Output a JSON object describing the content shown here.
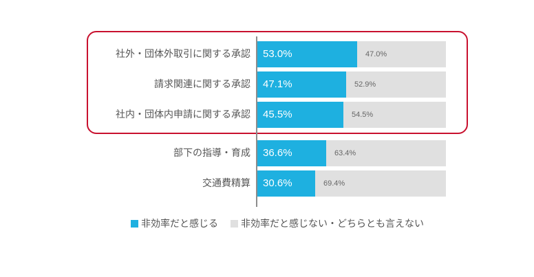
{
  "chart_data": {
    "type": "bar",
    "orientation": "horizontal",
    "stacked": true,
    "percent": true,
    "title": "",
    "xlabel": "",
    "ylabel": "",
    "xlim": [
      0,
      100
    ],
    "grid": false,
    "legend_position": "bottom",
    "categories": [
      "社外・団体外取引に関する承認",
      "請求関連に関する承認",
      "社内・団体内申請に関する承認",
      "部下の指導・育成",
      "交通費精算"
    ],
    "series": [
      {
        "name": "非効率だと感じる",
        "color": "#1eb0e0",
        "values": [
          53.0,
          47.1,
          45.5,
          36.6,
          30.6
        ]
      },
      {
        "name": "非効率だと感じない・どちらとも言えない",
        "color": "#e0e0e0",
        "values": [
          47.0,
          52.9,
          54.5,
          63.4,
          69.4
        ]
      }
    ],
    "annotations": [
      {
        "type": "highlight-box",
        "color": "#c8102e",
        "covers_categories": [
          0,
          1,
          2
        ]
      }
    ]
  },
  "rows": [
    {
      "label": "社外・団体外取引に関する承認",
      "main": "53.0%",
      "rest": "47.0%"
    },
    {
      "label": "請求関連に関する承認",
      "main": "47.1%",
      "rest": "52.9%"
    },
    {
      "label": "社内・団体内申請に関する承認",
      "main": "45.5%",
      "rest": "54.5%"
    },
    {
      "label": "部下の指導・育成",
      "main": "36.6%",
      "rest": "63.4%"
    },
    {
      "label": "交通費精算",
      "main": "30.6%",
      "rest": "69.4%"
    }
  ],
  "legend": [
    {
      "label": "非効率だと感じる",
      "color": "#1eb0e0"
    },
    {
      "label": "非効率だと感じない・どちらとも言えない",
      "color": "#e0e0e0"
    }
  ]
}
